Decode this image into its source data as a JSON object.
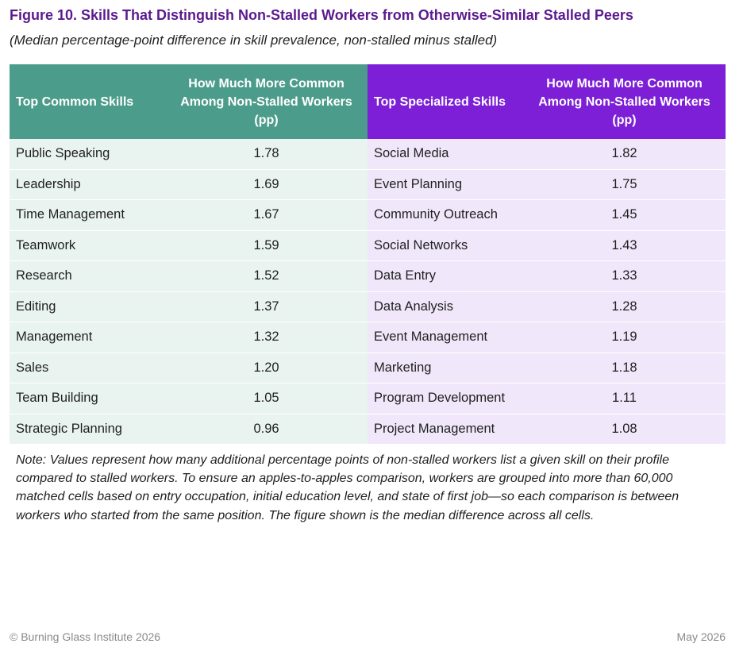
{
  "figure": {
    "title": "Figure 10. Skills That Distinguish Non-Stalled Workers from Otherwise-Similar Stalled Peers",
    "subtitle": "(Median percentage-point difference in skill prevalence, non-stalled minus stalled)"
  },
  "colors": {
    "title": "#5b1a8e",
    "common_header": "#4c9c8c",
    "specialized_header": "#7c1fd6",
    "common_cell": "#e9f4f1",
    "specialized_cell": "#f1e7fa"
  },
  "table": {
    "headers": {
      "common_skill": "Top Common Skills",
      "common_value": "How Much More Common Among Non-Stalled Workers (pp)",
      "specialized_skill": "Top Specialized Skills",
      "specialized_value": "How Much More Common Among Non-Stalled Workers (pp)"
    },
    "rows": [
      {
        "common_skill": "Public Speaking",
        "common_value": "1.78",
        "specialized_skill": "Social Media",
        "specialized_value": "1.82"
      },
      {
        "common_skill": "Leadership",
        "common_value": "1.69",
        "specialized_skill": "Event Planning",
        "specialized_value": "1.75"
      },
      {
        "common_skill": "Time Management",
        "common_value": "1.67",
        "specialized_skill": "Community Outreach",
        "specialized_value": "1.45"
      },
      {
        "common_skill": "Teamwork",
        "common_value": "1.59",
        "specialized_skill": "Social Networks",
        "specialized_value": "1.43"
      },
      {
        "common_skill": "Research",
        "common_value": "1.52",
        "specialized_skill": "Data Entry",
        "specialized_value": "1.33"
      },
      {
        "common_skill": "Editing",
        "common_value": "1.37",
        "specialized_skill": "Data Analysis",
        "specialized_value": "1.28"
      },
      {
        "common_skill": "Management",
        "common_value": "1.32",
        "specialized_skill": "Event Management",
        "specialized_value": "1.19"
      },
      {
        "common_skill": "Sales",
        "common_value": "1.20",
        "specialized_skill": "Marketing",
        "specialized_value": "1.18"
      },
      {
        "common_skill": "Team Building",
        "common_value": "1.05",
        "specialized_skill": "Program Development",
        "specialized_value": "1.11"
      },
      {
        "common_skill": "Strategic Planning",
        "common_value": "0.96",
        "specialized_skill": "Project Management",
        "specialized_value": "1.08"
      }
    ]
  },
  "note": "Note: Values represent how many additional percentage points of non-stalled workers list a given skill on their profile compared to stalled workers. To ensure an apples-to-apples comparison, workers are grouped into more than 60,000 matched cells based on entry occupation, initial education level, and state of first job—so each comparison is between workers who started from the same position. The figure shown is the median difference across all cells.",
  "footer": {
    "copyright": "© Burning Glass Institute 2026",
    "date": "May 2026"
  }
}
